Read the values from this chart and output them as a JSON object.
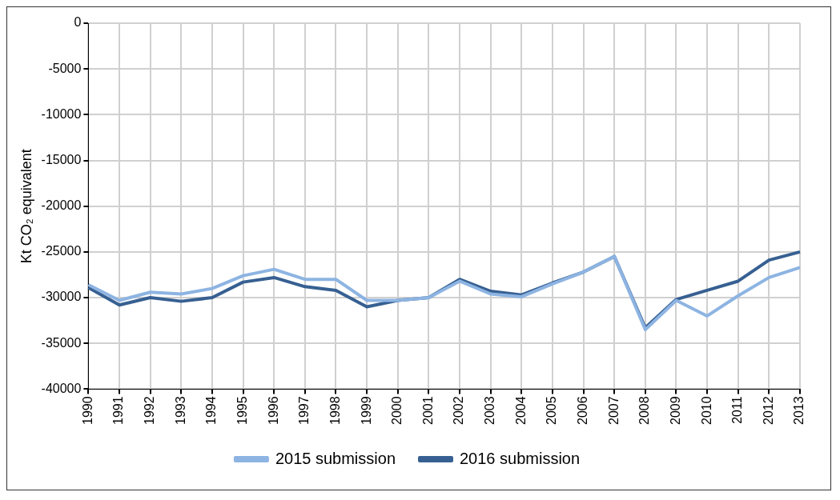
{
  "chart_data": {
    "type": "line",
    "ylabel": "Kt CO₂ equivalent",
    "categories": [
      "1990",
      "1991",
      "1992",
      "1993",
      "1994",
      "1995",
      "1996",
      "1997",
      "1998",
      "1999",
      "2000",
      "2001",
      "2002",
      "2003",
      "2004",
      "2005",
      "2006",
      "2007",
      "2008",
      "2009",
      "2010",
      "2011",
      "2012",
      "2013"
    ],
    "series": [
      {
        "name": "2015 submission",
        "color": "#8db4e2",
        "values": [
          -28600,
          -30300,
          -29400,
          -29600,
          -29000,
          -27600,
          -26900,
          -28000,
          -28000,
          -30300,
          -30300,
          -30000,
          -28200,
          -29600,
          -29900,
          -28500,
          -27200,
          -25500,
          -33500,
          -30300,
          -32000,
          -29800,
          -27800,
          -26700
        ]
      },
      {
        "name": "2016 submission",
        "color": "#376092",
        "values": [
          -28900,
          -30800,
          -30000,
          -30400,
          -30000,
          -28300,
          -27800,
          -28800,
          -29200,
          -31000,
          -30300,
          -30000,
          -28000,
          -29300,
          -29700,
          -28400,
          -27200,
          -25500,
          -33300,
          -30200,
          -29200,
          -28200,
          -25900,
          -25000
        ]
      }
    ],
    "ylim": [
      -40000,
      0
    ],
    "yticks": [
      -40000,
      -35000,
      -30000,
      -25000,
      -20000,
      -15000,
      -10000,
      -5000,
      0
    ],
    "grid": true,
    "legend": "bottom",
    "marker": "none",
    "line_style": "solid"
  }
}
